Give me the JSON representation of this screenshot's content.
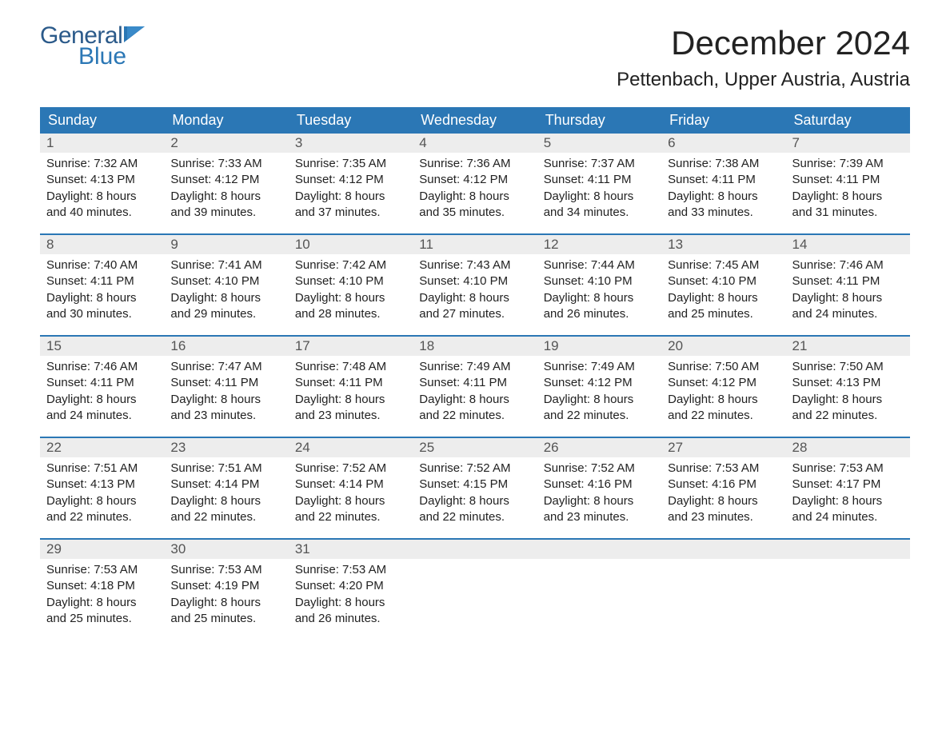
{
  "logo": {
    "general": "General",
    "blue": "Blue"
  },
  "title": "December 2024",
  "location": "Pettenbach, Upper Austria, Austria",
  "colors": {
    "header_bg": "#2b77b5",
    "header_text": "#ffffff",
    "row_sep": "#2b77b5",
    "daynum_bg": "#ededed",
    "text": "#222222"
  },
  "weekdays": [
    "Sunday",
    "Monday",
    "Tuesday",
    "Wednesday",
    "Thursday",
    "Friday",
    "Saturday"
  ],
  "weeks": [
    [
      {
        "n": "1",
        "sr": "Sunrise: 7:32 AM",
        "ss": "Sunset: 4:13 PM",
        "d1": "Daylight: 8 hours",
        "d2": "and 40 minutes."
      },
      {
        "n": "2",
        "sr": "Sunrise: 7:33 AM",
        "ss": "Sunset: 4:12 PM",
        "d1": "Daylight: 8 hours",
        "d2": "and 39 minutes."
      },
      {
        "n": "3",
        "sr": "Sunrise: 7:35 AM",
        "ss": "Sunset: 4:12 PM",
        "d1": "Daylight: 8 hours",
        "d2": "and 37 minutes."
      },
      {
        "n": "4",
        "sr": "Sunrise: 7:36 AM",
        "ss": "Sunset: 4:12 PM",
        "d1": "Daylight: 8 hours",
        "d2": "and 35 minutes."
      },
      {
        "n": "5",
        "sr": "Sunrise: 7:37 AM",
        "ss": "Sunset: 4:11 PM",
        "d1": "Daylight: 8 hours",
        "d2": "and 34 minutes."
      },
      {
        "n": "6",
        "sr": "Sunrise: 7:38 AM",
        "ss": "Sunset: 4:11 PM",
        "d1": "Daylight: 8 hours",
        "d2": "and 33 minutes."
      },
      {
        "n": "7",
        "sr": "Sunrise: 7:39 AM",
        "ss": "Sunset: 4:11 PM",
        "d1": "Daylight: 8 hours",
        "d2": "and 31 minutes."
      }
    ],
    [
      {
        "n": "8",
        "sr": "Sunrise: 7:40 AM",
        "ss": "Sunset: 4:11 PM",
        "d1": "Daylight: 8 hours",
        "d2": "and 30 minutes."
      },
      {
        "n": "9",
        "sr": "Sunrise: 7:41 AM",
        "ss": "Sunset: 4:10 PM",
        "d1": "Daylight: 8 hours",
        "d2": "and 29 minutes."
      },
      {
        "n": "10",
        "sr": "Sunrise: 7:42 AM",
        "ss": "Sunset: 4:10 PM",
        "d1": "Daylight: 8 hours",
        "d2": "and 28 minutes."
      },
      {
        "n": "11",
        "sr": "Sunrise: 7:43 AM",
        "ss": "Sunset: 4:10 PM",
        "d1": "Daylight: 8 hours",
        "d2": "and 27 minutes."
      },
      {
        "n": "12",
        "sr": "Sunrise: 7:44 AM",
        "ss": "Sunset: 4:10 PM",
        "d1": "Daylight: 8 hours",
        "d2": "and 26 minutes."
      },
      {
        "n": "13",
        "sr": "Sunrise: 7:45 AM",
        "ss": "Sunset: 4:10 PM",
        "d1": "Daylight: 8 hours",
        "d2": "and 25 minutes."
      },
      {
        "n": "14",
        "sr": "Sunrise: 7:46 AM",
        "ss": "Sunset: 4:11 PM",
        "d1": "Daylight: 8 hours",
        "d2": "and 24 minutes."
      }
    ],
    [
      {
        "n": "15",
        "sr": "Sunrise: 7:46 AM",
        "ss": "Sunset: 4:11 PM",
        "d1": "Daylight: 8 hours",
        "d2": "and 24 minutes."
      },
      {
        "n": "16",
        "sr": "Sunrise: 7:47 AM",
        "ss": "Sunset: 4:11 PM",
        "d1": "Daylight: 8 hours",
        "d2": "and 23 minutes."
      },
      {
        "n": "17",
        "sr": "Sunrise: 7:48 AM",
        "ss": "Sunset: 4:11 PM",
        "d1": "Daylight: 8 hours",
        "d2": "and 23 minutes."
      },
      {
        "n": "18",
        "sr": "Sunrise: 7:49 AM",
        "ss": "Sunset: 4:11 PM",
        "d1": "Daylight: 8 hours",
        "d2": "and 22 minutes."
      },
      {
        "n": "19",
        "sr": "Sunrise: 7:49 AM",
        "ss": "Sunset: 4:12 PM",
        "d1": "Daylight: 8 hours",
        "d2": "and 22 minutes."
      },
      {
        "n": "20",
        "sr": "Sunrise: 7:50 AM",
        "ss": "Sunset: 4:12 PM",
        "d1": "Daylight: 8 hours",
        "d2": "and 22 minutes."
      },
      {
        "n": "21",
        "sr": "Sunrise: 7:50 AM",
        "ss": "Sunset: 4:13 PM",
        "d1": "Daylight: 8 hours",
        "d2": "and 22 minutes."
      }
    ],
    [
      {
        "n": "22",
        "sr": "Sunrise: 7:51 AM",
        "ss": "Sunset: 4:13 PM",
        "d1": "Daylight: 8 hours",
        "d2": "and 22 minutes."
      },
      {
        "n": "23",
        "sr": "Sunrise: 7:51 AM",
        "ss": "Sunset: 4:14 PM",
        "d1": "Daylight: 8 hours",
        "d2": "and 22 minutes."
      },
      {
        "n": "24",
        "sr": "Sunrise: 7:52 AM",
        "ss": "Sunset: 4:14 PM",
        "d1": "Daylight: 8 hours",
        "d2": "and 22 minutes."
      },
      {
        "n": "25",
        "sr": "Sunrise: 7:52 AM",
        "ss": "Sunset: 4:15 PM",
        "d1": "Daylight: 8 hours",
        "d2": "and 22 minutes."
      },
      {
        "n": "26",
        "sr": "Sunrise: 7:52 AM",
        "ss": "Sunset: 4:16 PM",
        "d1": "Daylight: 8 hours",
        "d2": "and 23 minutes."
      },
      {
        "n": "27",
        "sr": "Sunrise: 7:53 AM",
        "ss": "Sunset: 4:16 PM",
        "d1": "Daylight: 8 hours",
        "d2": "and 23 minutes."
      },
      {
        "n": "28",
        "sr": "Sunrise: 7:53 AM",
        "ss": "Sunset: 4:17 PM",
        "d1": "Daylight: 8 hours",
        "d2": "and 24 minutes."
      }
    ],
    [
      {
        "n": "29",
        "sr": "Sunrise: 7:53 AM",
        "ss": "Sunset: 4:18 PM",
        "d1": "Daylight: 8 hours",
        "d2": "and 25 minutes."
      },
      {
        "n": "30",
        "sr": "Sunrise: 7:53 AM",
        "ss": "Sunset: 4:19 PM",
        "d1": "Daylight: 8 hours",
        "d2": "and 25 minutes."
      },
      {
        "n": "31",
        "sr": "Sunrise: 7:53 AM",
        "ss": "Sunset: 4:20 PM",
        "d1": "Daylight: 8 hours",
        "d2": "and 26 minutes."
      },
      {
        "n": "",
        "sr": "",
        "ss": "",
        "d1": "",
        "d2": ""
      },
      {
        "n": "",
        "sr": "",
        "ss": "",
        "d1": "",
        "d2": ""
      },
      {
        "n": "",
        "sr": "",
        "ss": "",
        "d1": "",
        "d2": ""
      },
      {
        "n": "",
        "sr": "",
        "ss": "",
        "d1": "",
        "d2": ""
      }
    ]
  ]
}
